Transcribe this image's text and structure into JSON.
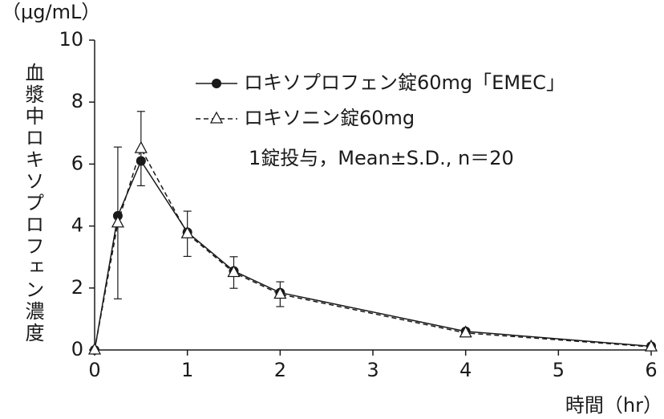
{
  "chart_data": {
    "type": "line",
    "y_unit_label": "（μg/mL）",
    "y_label": "血漿中ロキソプロフェン濃度",
    "x_label": "時間（hr）",
    "annotation": "1錠投与，Mean±S.D., n＝20",
    "x": [
      0,
      0.25,
      0.5,
      1,
      1.5,
      2,
      4,
      6
    ],
    "series": [
      {
        "name": "ロキソプロフェン錠60mg「EMEC」",
        "color": "#1a1a1a",
        "marker": "circle",
        "dash": "solid",
        "values": [
          0,
          4.33,
          6.1,
          3.8,
          2.55,
          1.85,
          0.6,
          0.12
        ]
      },
      {
        "name": "ロキソニン錠60mg",
        "color": "#1a1a1a",
        "marker": "triangle",
        "dash": "dashed",
        "values": [
          0,
          4.1,
          6.5,
          3.75,
          2.5,
          1.8,
          0.55,
          0.1
        ],
        "errors": [
          null,
          2.45,
          1.2,
          0.73,
          0.51,
          0.4,
          null,
          null
        ]
      }
    ],
    "xlim": [
      0,
      6
    ],
    "xticks": [
      0,
      1,
      2,
      3,
      4,
      5,
      6
    ],
    "ylim": [
      0,
      10
    ],
    "yticks": [
      0,
      2,
      4,
      6,
      8,
      10
    ],
    "grid": false
  }
}
